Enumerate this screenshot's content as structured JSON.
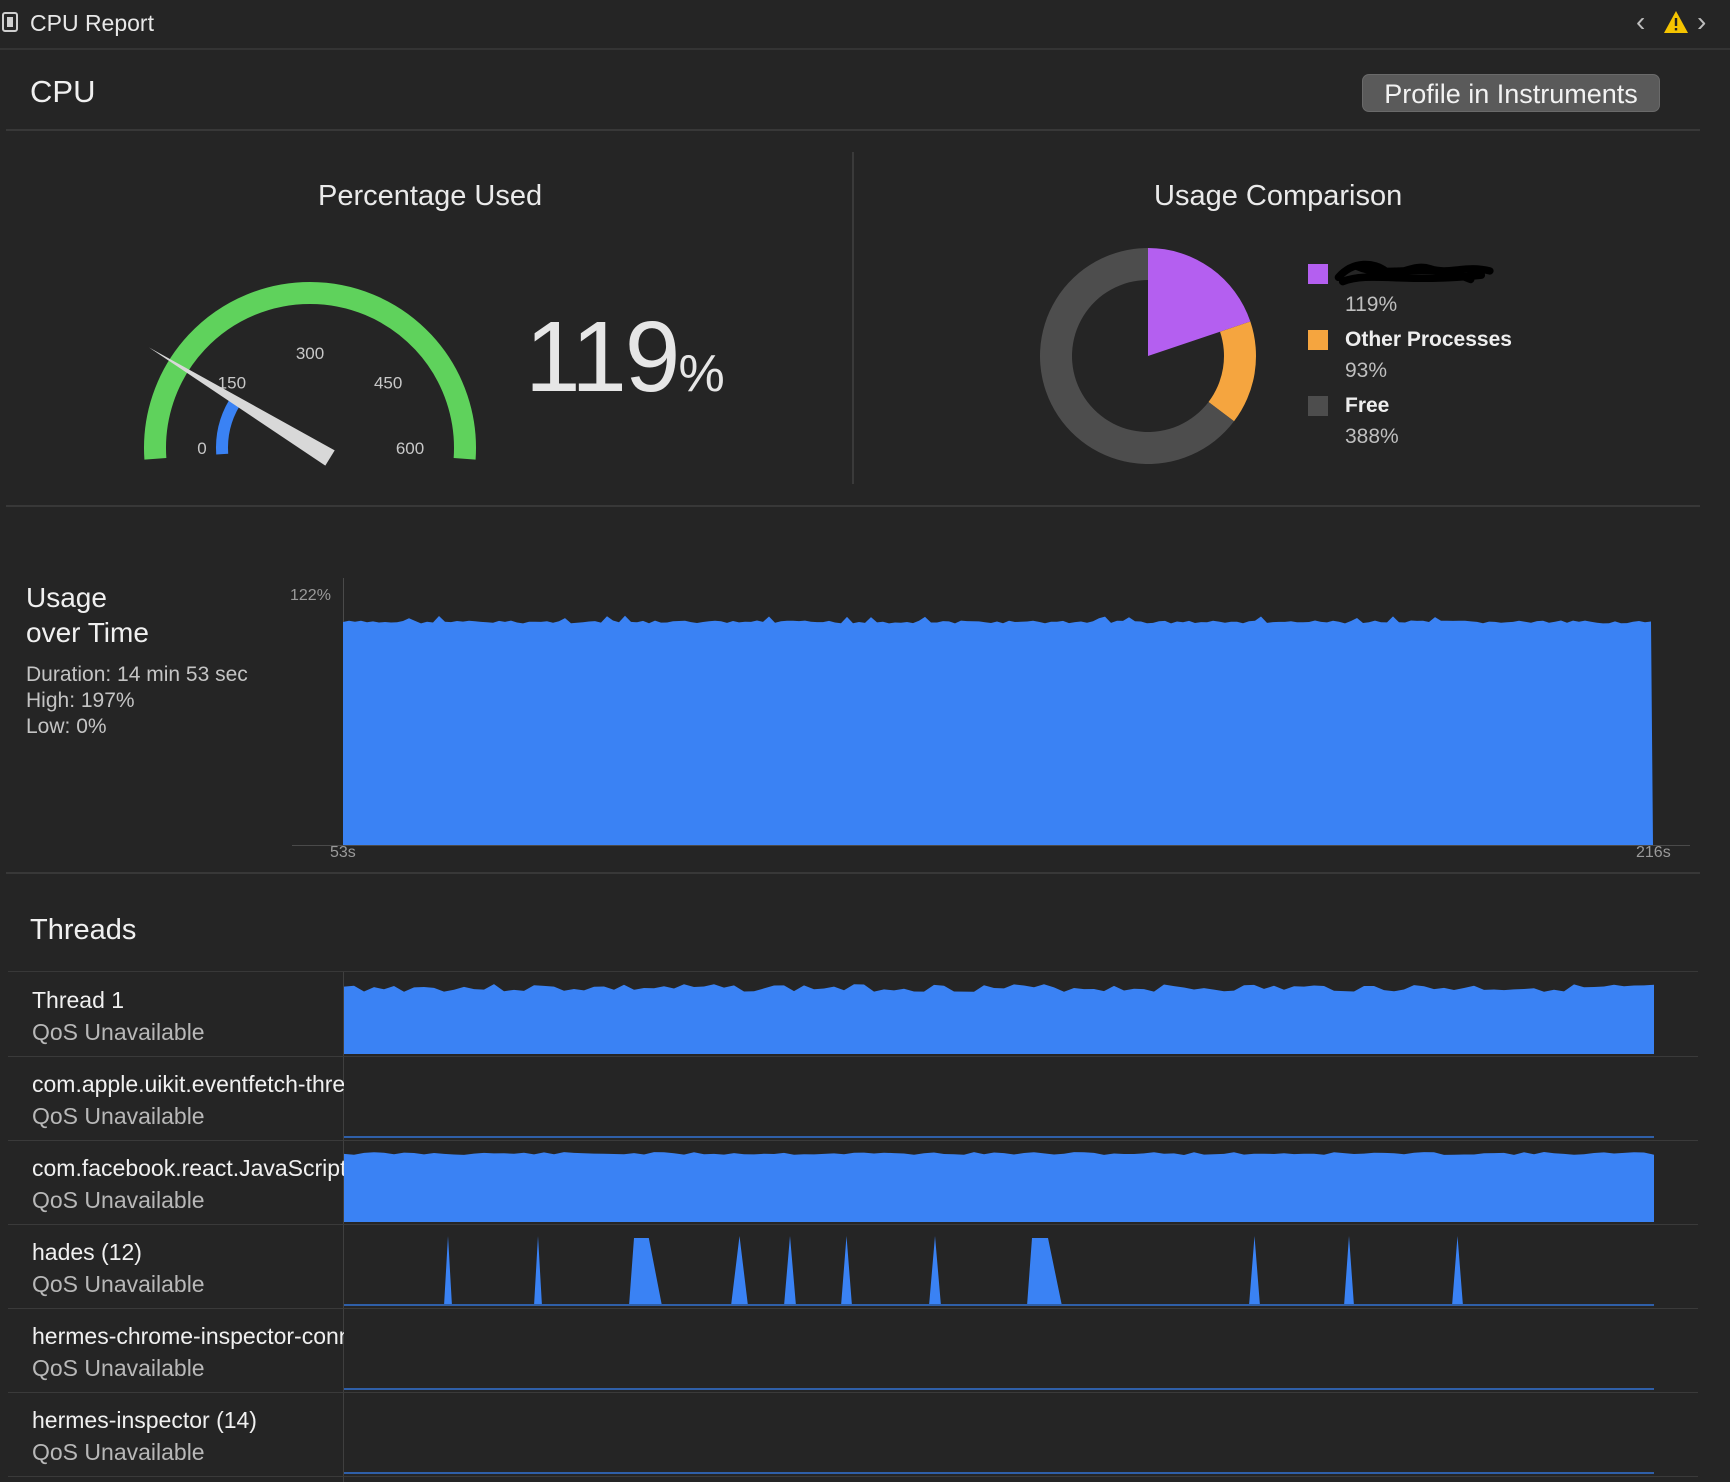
{
  "window": {
    "title": "CPU Report"
  },
  "header": {
    "title": "CPU",
    "profile_button": "Profile in Instruments"
  },
  "percentage_used": {
    "title": "Percentage Used",
    "value": "119",
    "unit": "%",
    "gauge_value": 119,
    "gauge_max": 600,
    "ticks": [
      "0",
      "150",
      "300",
      "450",
      "600"
    ]
  },
  "usage_comparison": {
    "title": "Usage Comparison",
    "items": [
      {
        "name": "",
        "value": "119%",
        "amount": 119,
        "color": "#b45ff0"
      },
      {
        "name": "Other Processes",
        "value": "93%",
        "amount": 93,
        "color": "#f5a53f"
      },
      {
        "name": "Free",
        "value": "388%",
        "amount": 388,
        "color": "#4d4d4d"
      }
    ]
  },
  "usage_over_time": {
    "title_line1": "Usage",
    "title_line2": "over Time",
    "duration": "Duration: 14 min 53 sec",
    "high": "High: 197%",
    "low": "Low: 0%",
    "y_label": "122%",
    "x_start": "53s",
    "x_end": "216s"
  },
  "threads": {
    "title": "Threads",
    "items": [
      {
        "name": "Thread 1",
        "qos": "QoS Unavailable"
      },
      {
        "name": "com.apple.uikit.eventfetch-thread",
        "qos": "QoS Unavailable"
      },
      {
        "name": "com.facebook.react.JavaScript",
        "qos": "QoS Unavailable"
      },
      {
        "name": "hades (12)",
        "qos": "QoS Unavailable"
      },
      {
        "name": "hermes-chrome-inspector-conn",
        "qos": "QoS Unavailable"
      },
      {
        "name": "hermes-inspector (14)",
        "qos": "QoS Unavailable"
      }
    ]
  },
  "colors": {
    "accent": "#3a82f4",
    "gauge_green": "#5fd25c",
    "background": "#252525"
  }
}
